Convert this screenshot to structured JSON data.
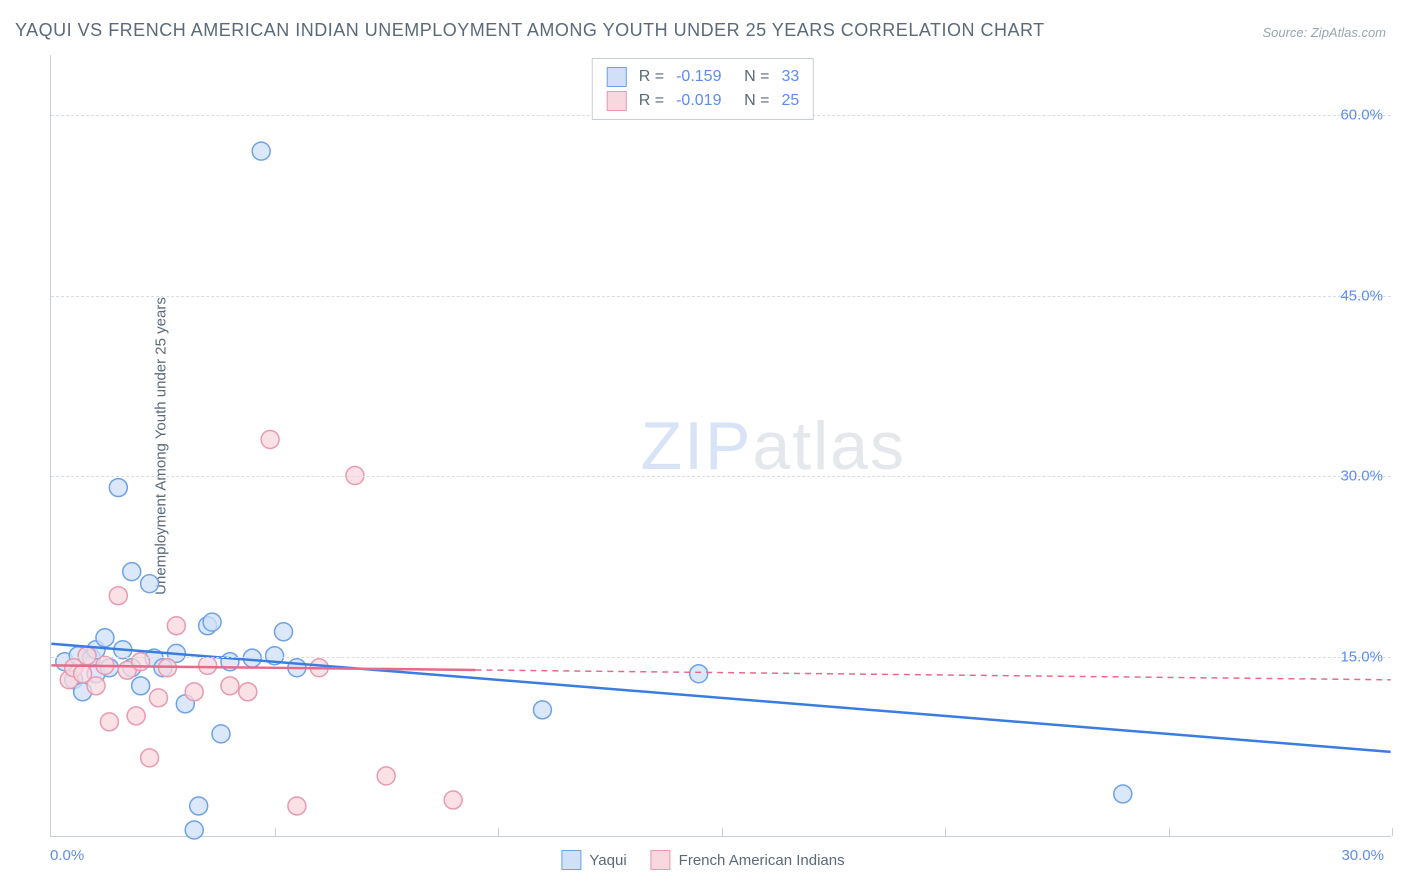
{
  "title": "YAQUI VS FRENCH AMERICAN INDIAN UNEMPLOYMENT AMONG YOUTH UNDER 25 YEARS CORRELATION CHART",
  "source": "Source: ZipAtlas.com",
  "ylabel": "Unemployment Among Youth under 25 years",
  "watermark_z": "ZIP",
  "watermark_a": "atlas",
  "chart": {
    "type": "scatter-correlation",
    "xlim": [
      0,
      30
    ],
    "ylim": [
      0,
      65
    ],
    "y_ticks": [
      15,
      30,
      45,
      60
    ],
    "y_tick_labels": [
      "15.0%",
      "30.0%",
      "45.0%",
      "60.0%"
    ],
    "x_tick_positions": [
      5,
      10,
      15,
      20,
      25,
      30
    ],
    "x_left_label": "0.0%",
    "x_right_label": "30.0%",
    "background_color": "#ffffff",
    "grid_color": "#d8dde3",
    "axis_color": "#c8ced6",
    "text_color": "#5a6a7a",
    "accent_color": "#5b8def",
    "series": [
      {
        "name": "Yaqui",
        "marker_fill": "#cfe0f7",
        "marker_stroke": "#6ea2e8",
        "line_color": "#3a7de0",
        "line_dash": "none",
        "R": "-0.159",
        "N": "33",
        "regression": {
          "x1": 0,
          "y1": 16.0,
          "x2": 30,
          "y2": 7.0
        },
        "regression_solid_until_x": 30,
        "points": [
          {
            "x": 0.3,
            "y": 14.5
          },
          {
            "x": 0.5,
            "y": 13.0
          },
          {
            "x": 0.6,
            "y": 15.0
          },
          {
            "x": 0.7,
            "y": 12.0
          },
          {
            "x": 0.9,
            "y": 14.8
          },
          {
            "x": 1.0,
            "y": 15.5
          },
          {
            "x": 1.0,
            "y": 13.5
          },
          {
            "x": 1.2,
            "y": 16.5
          },
          {
            "x": 1.3,
            "y": 14.0
          },
          {
            "x": 1.5,
            "y": 29.0
          },
          {
            "x": 1.6,
            "y": 15.5
          },
          {
            "x": 1.8,
            "y": 22.0
          },
          {
            "x": 1.8,
            "y": 14.0
          },
          {
            "x": 2.0,
            "y": 12.5
          },
          {
            "x": 2.2,
            "y": 21.0
          },
          {
            "x": 2.3,
            "y": 14.8
          },
          {
            "x": 2.5,
            "y": 14.0
          },
          {
            "x": 2.8,
            "y": 15.2
          },
          {
            "x": 3.0,
            "y": 11.0
          },
          {
            "x": 3.2,
            "y": 0.5
          },
          {
            "x": 3.3,
            "y": 2.5
          },
          {
            "x": 3.5,
            "y": 17.5
          },
          {
            "x": 3.6,
            "y": 17.8
          },
          {
            "x": 3.8,
            "y": 8.5
          },
          {
            "x": 4.0,
            "y": 14.5
          },
          {
            "x": 4.5,
            "y": 14.8
          },
          {
            "x": 4.7,
            "y": 57.0
          },
          {
            "x": 5.0,
            "y": 15.0
          },
          {
            "x": 5.2,
            "y": 17.0
          },
          {
            "x": 5.5,
            "y": 14.0
          },
          {
            "x": 11.0,
            "y": 10.5
          },
          {
            "x": 14.5,
            "y": 13.5
          },
          {
            "x": 24.0,
            "y": 3.5
          }
        ]
      },
      {
        "name": "French American Indians",
        "marker_fill": "#f8d7de",
        "marker_stroke": "#e89ab0",
        "line_color": "#e66a8a",
        "line_dash": "6,5",
        "R": "-0.019",
        "N": "25",
        "regression": {
          "x1": 0,
          "y1": 14.2,
          "x2": 30,
          "y2": 13.0
        },
        "regression_solid_until_x": 9.5,
        "points": [
          {
            "x": 0.4,
            "y": 13.0
          },
          {
            "x": 0.5,
            "y": 14.0
          },
          {
            "x": 0.7,
            "y": 13.5
          },
          {
            "x": 0.8,
            "y": 15.0
          },
          {
            "x": 1.0,
            "y": 12.5
          },
          {
            "x": 1.2,
            "y": 14.2
          },
          {
            "x": 1.3,
            "y": 9.5
          },
          {
            "x": 1.5,
            "y": 20.0
          },
          {
            "x": 1.7,
            "y": 13.8
          },
          {
            "x": 1.9,
            "y": 10.0
          },
          {
            "x": 2.0,
            "y": 14.5
          },
          {
            "x": 2.2,
            "y": 6.5
          },
          {
            "x": 2.4,
            "y": 11.5
          },
          {
            "x": 2.6,
            "y": 14.0
          },
          {
            "x": 2.8,
            "y": 17.5
          },
          {
            "x": 3.2,
            "y": 12.0
          },
          {
            "x": 3.5,
            "y": 14.2
          },
          {
            "x": 4.0,
            "y": 12.5
          },
          {
            "x": 4.4,
            "y": 12.0
          },
          {
            "x": 4.9,
            "y": 33.0
          },
          {
            "x": 5.5,
            "y": 2.5
          },
          {
            "x": 6.0,
            "y": 14.0
          },
          {
            "x": 6.8,
            "y": 30.0
          },
          {
            "x": 7.5,
            "y": 5.0
          },
          {
            "x": 9.0,
            "y": 3.0
          }
        ]
      }
    ],
    "marker_radius": 9,
    "marker_opacity": 0.75,
    "line_width": 2.5
  },
  "legend_top": {
    "r_label": "R =",
    "n_label": "N ="
  },
  "legend_bottom": {
    "items": [
      "Yaqui",
      "French American Indians"
    ]
  }
}
